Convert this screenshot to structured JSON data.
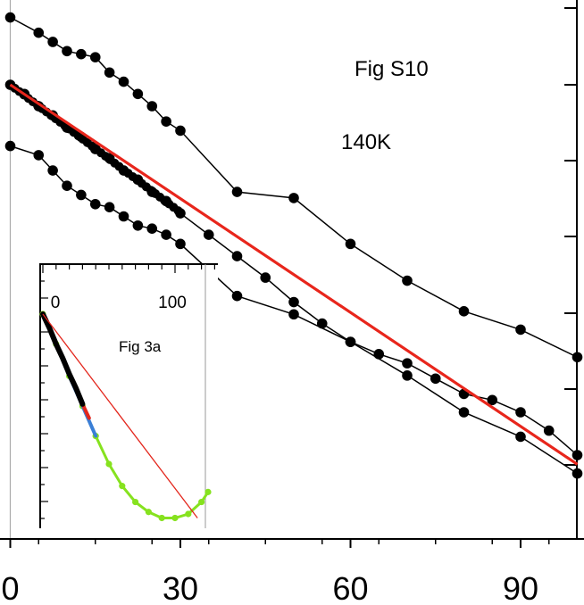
{
  "figure": {
    "label": "Fig S10",
    "temperature": "140K"
  },
  "chart_data": [
    {
      "type": "line",
      "title": "Fig S10",
      "annotation": "140K",
      "xlabel": "",
      "ylabel": "",
      "xlim": [
        -2,
        100
      ],
      "ylim": [
        -1.36,
        0.21
      ],
      "x_ticks": [
        0,
        30,
        60,
        90
      ],
      "x_tick_labels": [
        "0",
        "30",
        "60",
        "90"
      ],
      "grid": false,
      "series": [
        {
          "name": "upper",
          "color": "#000000",
          "x": [
            0,
            5,
            7.5,
            10,
            12.5,
            15,
            17.5,
            20,
            22.5,
            25,
            27.5,
            30,
            40,
            50,
            60,
            70,
            80,
            90,
            100
          ],
          "y": [
            0.22,
            0.17,
            0.14,
            0.11,
            0.1,
            0.09,
            0.04,
            0.01,
            -0.03,
            -0.07,
            -0.12,
            -0.15,
            -0.35,
            -0.37,
            -0.52,
            -0.64,
            -0.74,
            -0.8,
            -0.89
          ]
        },
        {
          "name": "middle",
          "color": "#000000",
          "x": [
            0,
            2.5,
            5,
            7.5,
            10,
            12.5,
            15,
            17.5,
            20,
            22.5,
            25,
            27.5,
            30,
            35,
            40,
            45,
            50,
            55,
            60,
            65,
            70,
            75,
            80,
            85,
            90,
            95,
            100
          ],
          "y": [
            0.0,
            -0.03,
            -0.07,
            -0.1,
            -0.14,
            -0.17,
            -0.21,
            -0.24,
            -0.28,
            -0.31,
            -0.35,
            -0.38,
            -0.42,
            -0.49,
            -0.56,
            -0.63,
            -0.71,
            -0.78,
            -0.84,
            -0.88,
            -0.91,
            -0.96,
            -1.01,
            -1.03,
            -1.07,
            -1.13,
            -1.21
          ]
        },
        {
          "name": "lower",
          "color": "#000000",
          "x": [
            0,
            5,
            7.5,
            10,
            12.5,
            15,
            17.5,
            20,
            22.5,
            25,
            27.5,
            30,
            40,
            50,
            60,
            70,
            80,
            90,
            100
          ],
          "y": [
            -0.2,
            -0.23,
            -0.28,
            -0.33,
            -0.36,
            -0.39,
            -0.4,
            -0.43,
            -0.46,
            -0.47,
            -0.49,
            -0.52,
            -0.69,
            -0.75,
            -0.84,
            -0.95,
            -1.07,
            -1.15,
            -1.27
          ]
        },
        {
          "name": "linear fit",
          "color": "#e8261c",
          "type": "line",
          "x": [
            0,
            100
          ],
          "y": [
            0.0,
            -1.24
          ]
        }
      ]
    },
    {
      "type": "line",
      "title": "Fig 3a",
      "inset": true,
      "xlim": [
        -3,
        130
      ],
      "ylim": [
        -1.1,
        0.15
      ],
      "x_ticks": [
        0,
        100
      ],
      "x_tick_labels": [
        "0",
        "100"
      ],
      "series": [
        {
          "name": "green",
          "color": "#86e21f",
          "x": [
            0,
            10,
            20,
            30,
            40,
            50,
            60,
            70,
            80,
            90,
            100,
            110,
            120,
            125
          ],
          "y": [
            0.0,
            -0.15,
            -0.31,
            -0.46,
            -0.61,
            -0.75,
            -0.86,
            -0.94,
            -0.99,
            -1.02,
            -1.02,
            -1.0,
            -0.94,
            -0.89
          ]
        },
        {
          "name": "blue",
          "color": "#3a7fd6",
          "x": [
            0,
            10,
            20,
            30,
            40
          ],
          "y": [
            0.0,
            -0.15,
            -0.31,
            -0.46,
            -0.61
          ]
        },
        {
          "name": "red",
          "color": "#e3261c",
          "x": [
            0,
            10,
            20,
            30,
            35
          ],
          "y": [
            0.0,
            -0.14,
            -0.3,
            -0.45,
            -0.52
          ]
        },
        {
          "name": "black",
          "color": "#000000",
          "x": [
            0,
            5,
            10,
            15,
            20,
            25,
            30
          ],
          "y": [
            0.0,
            -0.07,
            -0.15,
            -0.22,
            -0.3,
            -0.37,
            -0.45
          ]
        },
        {
          "name": "linear reference",
          "color": "#e3261c",
          "x": [
            0,
            117
          ],
          "y": [
            0.0,
            -1.02
          ]
        }
      ]
    }
  ]
}
